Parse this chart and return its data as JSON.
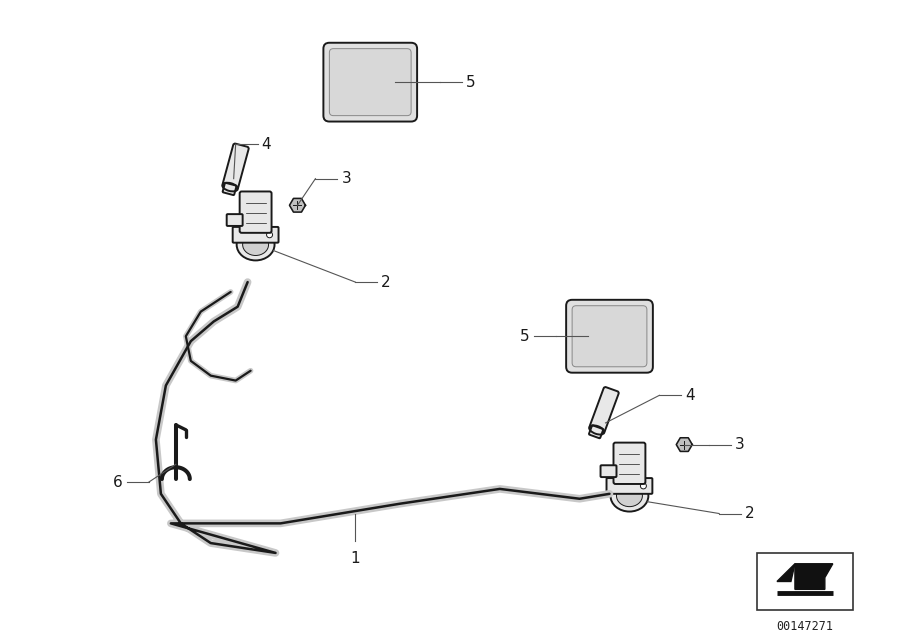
{
  "background_color": "#ffffff",
  "line_color": "#1a1a1a",
  "figure_width": 9.0,
  "figure_height": 6.36,
  "dpi": 100,
  "watermark": "00147271",
  "lw_pipe": 1.8,
  "lw_part": 1.4,
  "lw_leader": 0.8,
  "label_fontsize": 11,
  "label_color": "#1a1a1a",
  "part_facecolor": "#e8e8e8",
  "part_edgecolor": "#1a1a1a"
}
